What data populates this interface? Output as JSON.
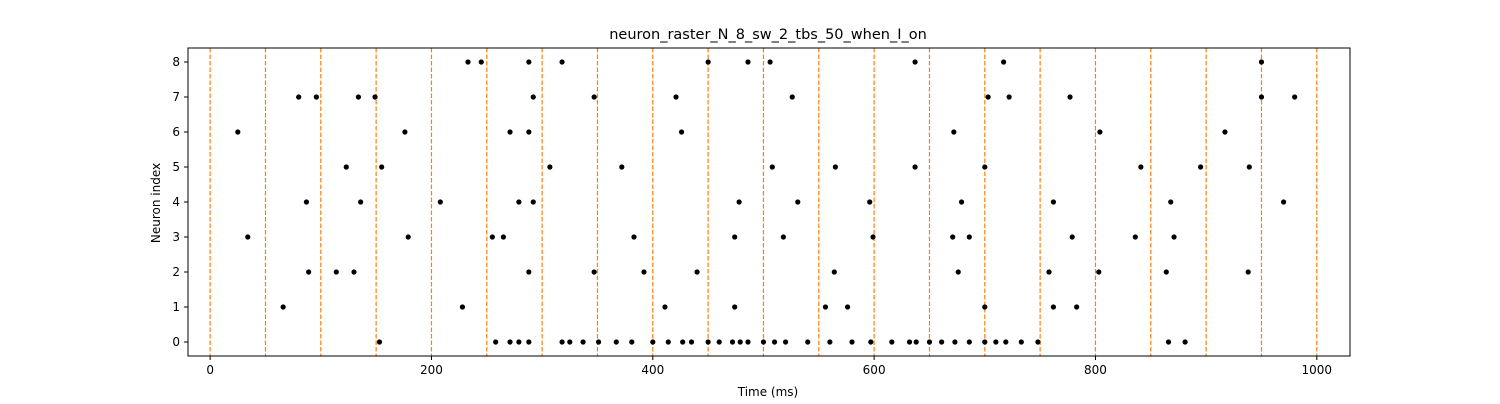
{
  "chart_data": {
    "type": "scatter",
    "title": "neuron_raster_N_8_sw_2_tbs_50_when_I_on",
    "xlabel": "Time (ms)",
    "ylabel": "Neuron index",
    "xlim": [
      -20,
      1030
    ],
    "ylim": [
      -0.4,
      8.4
    ],
    "xticks": [
      0,
      200,
      400,
      600,
      800,
      1000
    ],
    "yticks": [
      0,
      1,
      2,
      3,
      4,
      5,
      6,
      7,
      8
    ],
    "grid": false,
    "legend": "none",
    "colors": {
      "points": "#000000",
      "vlines": "#ff7f0e",
      "axes": "#000000"
    },
    "vlines": [
      0,
      50,
      100,
      150,
      200,
      250,
      300,
      350,
      400,
      450,
      500,
      550,
      600,
      650,
      700,
      750,
      800,
      850,
      900,
      950,
      1000
    ],
    "spikes": [
      {
        "neuron": 8,
        "times": [
          233,
          245,
          288,
          318,
          450,
          486,
          506,
          637,
          717,
          950
        ]
      },
      {
        "neuron": 7,
        "times": [
          80,
          96,
          134,
          149,
          292,
          347,
          421,
          526,
          703,
          722,
          777,
          950,
          980
        ]
      },
      {
        "neuron": 6,
        "times": [
          25,
          176,
          271,
          288,
          426,
          672,
          804,
          917
        ]
      },
      {
        "neuron": 5,
        "times": [
          123,
          155,
          307,
          372,
          508,
          565,
          637,
          700,
          841,
          895,
          939
        ]
      },
      {
        "neuron": 4,
        "times": [
          87,
          136,
          208,
          279,
          292,
          478,
          531,
          596,
          679,
          762,
          868,
          970
        ]
      },
      {
        "neuron": 3,
        "times": [
          34,
          179,
          255,
          265,
          383,
          474,
          518,
          599,
          671,
          686,
          779,
          836,
          871
        ]
      },
      {
        "neuron": 2,
        "times": [
          89,
          114,
          130,
          288,
          347,
          392,
          440,
          564,
          676,
          758,
          803,
          864,
          938
        ]
      },
      {
        "neuron": 1,
        "times": [
          66,
          228,
          411,
          474,
          556,
          576,
          700,
          762,
          783
        ]
      },
      {
        "neuron": 0,
        "times": [
          153,
          258,
          271,
          279,
          288,
          318,
          325,
          337,
          351,
          367,
          381,
          400,
          414,
          427,
          435,
          450,
          460,
          472,
          479,
          486,
          500,
          510,
          520,
          540,
          560,
          580,
          597,
          616,
          632,
          638,
          650,
          661,
          673,
          686,
          700,
          710,
          719,
          733,
          748,
          866,
          881
        ]
      }
    ]
  }
}
